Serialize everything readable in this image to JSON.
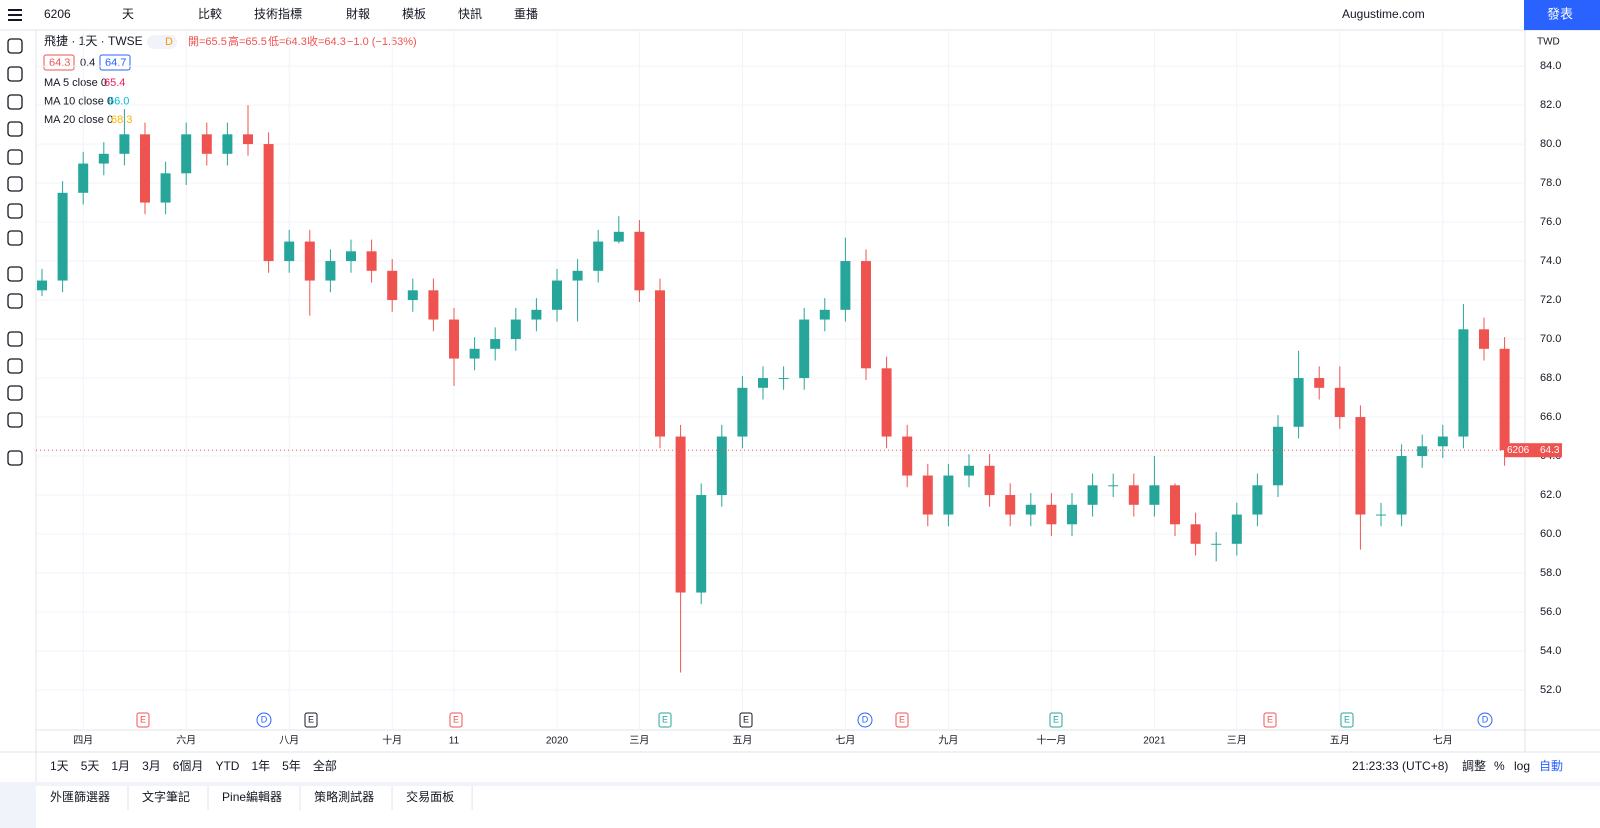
{
  "toolbar": {
    "symbol": "6206",
    "interval": "天",
    "compare": "比較",
    "indicators": "技術指標",
    "financials": "財報",
    "templates": "模板",
    "alerts": "快訊",
    "replay": "重播",
    "account": "Augustime.com",
    "publish": "發表"
  },
  "legend": {
    "title": "飛捷 · 1天 · TWSE",
    "badge": "D",
    "open": "開=65.5",
    "high": "高=65.5",
    "low": "低=64.3",
    "close": "收=64.3",
    "change": "−1.0 (−1.53%)",
    "bid": "64.3",
    "spread": "0.4",
    "ask": "64.7",
    "ma": [
      {
        "name": "MA 5 close 0",
        "value": "65.4",
        "color": "#e91e63"
      },
      {
        "name": "MA 10 close 0",
        "value": "66.0",
        "color": "#00bcd4"
      },
      {
        "name": "MA 20 close 0",
        "value": "68.3",
        "color": "#ffb300"
      }
    ]
  },
  "price_axis": {
    "currency": "TWD",
    "last_symbol": "6206",
    "last_price": "64.3"
  },
  "events": [
    "E",
    "D",
    "E",
    "E",
    "E",
    "E",
    "D",
    "E",
    "E",
    "E",
    "E",
    "D"
  ],
  "chart_data": {
    "type": "candlestick",
    "up_color": "#26a69a",
    "down_color": "#ef5350",
    "ylim": [
      49.95,
      85.85
    ],
    "yticks": [
      {
        "value": 52,
        "label": "52.0"
      },
      {
        "value": 54,
        "label": "54.0"
      },
      {
        "value": 56,
        "label": "56.0"
      },
      {
        "value": 58,
        "label": "58.0"
      },
      {
        "value": 60,
        "label": "60.0"
      },
      {
        "value": 62,
        "label": "62.0"
      },
      {
        "value": 64,
        "label": "64.0"
      },
      {
        "value": 66,
        "label": "66.0"
      },
      {
        "value": 68,
        "label": "68.0"
      },
      {
        "value": 70,
        "label": "70.0"
      },
      {
        "value": 72,
        "label": "72.0"
      },
      {
        "value": 74,
        "label": "74.0"
      },
      {
        "value": 76,
        "label": "76.0"
      },
      {
        "value": 78,
        "label": "78.0"
      },
      {
        "value": 80,
        "label": "80.0"
      },
      {
        "value": 82,
        "label": "82.0"
      },
      {
        "value": 84,
        "label": "84.0"
      }
    ],
    "grid": true,
    "categories": [
      null,
      null,
      "四月",
      null,
      null,
      null,
      null,
      "六月",
      null,
      null,
      null,
      null,
      "八月",
      null,
      null,
      null,
      null,
      "十月",
      null,
      null,
      "11",
      null,
      null,
      null,
      null,
      "2020",
      null,
      null,
      null,
      "三月",
      null,
      null,
      null,
      null,
      "五月",
      null,
      null,
      null,
      null,
      "七月",
      null,
      null,
      null,
      null,
      "九月",
      null,
      null,
      null,
      null,
      "十一月",
      null,
      null,
      null,
      null,
      "2021",
      null,
      null,
      null,
      "三月",
      null,
      null,
      null,
      null,
      "五月",
      null,
      null,
      null,
      null,
      "七月",
      null,
      null,
      null
    ],
    "open": [
      72.5,
      73,
      77.5,
      79,
      79.5,
      80.5,
      77,
      78.5,
      80.5,
      79.5,
      80.5,
      80,
      74,
      75,
      73,
      74,
      74.5,
      73.5,
      72,
      72.5,
      71,
      69,
      69.5,
      70,
      71,
      71.5,
      73,
      73.5,
      75,
      75.5,
      72.5,
      65,
      57,
      62,
      65,
      67.5,
      68,
      68,
      71,
      71.5,
      74,
      68.5,
      65,
      63,
      61,
      63,
      63.5,
      62,
      61,
      61.5,
      60.5,
      61.5,
      62.5,
      62.5,
      61.5,
      62.5,
      60.5,
      59.5,
      59.5,
      61,
      62.5,
      65.5,
      68,
      67.5,
      66,
      61,
      61,
      64,
      64.5,
      65,
      70.5,
      69.5
    ],
    "high": [
      73.6,
      78.1,
      79.6,
      80.1,
      81.8,
      81.1,
      79.1,
      81.1,
      81.1,
      81.1,
      82,
      80.6,
      75.6,
      75.6,
      74.6,
      75.1,
      75.1,
      74.1,
      73.1,
      73.1,
      71.6,
      70.1,
      70.6,
      71.6,
      72.1,
      73.6,
      74.1,
      75.6,
      76.3,
      76.1,
      73.1,
      65.6,
      62.6,
      65.6,
      68.1,
      68.6,
      68.6,
      71.6,
      72.1,
      75.2,
      74.6,
      69.1,
      65.6,
      63.6,
      63.6,
      64.1,
      64.1,
      62.6,
      62.1,
      62.1,
      62.1,
      63.1,
      63.1,
      63.1,
      64,
      62.6,
      61.1,
      60.1,
      61.6,
      63.1,
      66.1,
      69.4,
      68.6,
      68.6,
      66.6,
      61.6,
      64.6,
      65.1,
      65.6,
      71.8,
      71.1,
      70.1
    ],
    "low": [
      72.2,
      72.4,
      76.9,
      78.4,
      78.9,
      76.4,
      76.4,
      77.9,
      78.9,
      78.9,
      79.4,
      73.4,
      73.4,
      71.2,
      72.4,
      73.4,
      72.9,
      71.4,
      71.4,
      70.4,
      67.6,
      68.4,
      68.9,
      69.4,
      70.4,
      70.9,
      70.9,
      72.9,
      74.9,
      71.9,
      64.4,
      52.9,
      56.4,
      61.4,
      64.4,
      66.9,
      67.4,
      67.4,
      70.4,
      70.9,
      67.9,
      64.4,
      62.4,
      60.4,
      60.4,
      62.4,
      61.4,
      60.4,
      60.4,
      59.9,
      59.9,
      60.9,
      61.9,
      60.9,
      60.9,
      59.9,
      58.9,
      58.6,
      58.9,
      60.4,
      61.9,
      64.9,
      66.9,
      65.4,
      59.2,
      60.4,
      60.4,
      63.4,
      63.9,
      64.4,
      68.9,
      63.5
    ],
    "close": [
      73,
      77.5,
      79,
      79.5,
      80.5,
      77,
      78.5,
      80.5,
      79.5,
      80.5,
      80,
      74,
      75,
      73,
      74,
      74.5,
      73.5,
      72,
      72.5,
      71,
      69,
      69.5,
      70,
      71,
      71.5,
      73,
      73.5,
      75,
      75.5,
      72.5,
      65,
      57,
      62,
      65,
      67.5,
      68,
      68,
      71,
      71.5,
      74,
      68.5,
      65,
      63,
      61,
      63,
      63.5,
      62,
      61,
      61.5,
      60.5,
      61.5,
      62.5,
      62.5,
      61.5,
      62.5,
      60.5,
      59.5,
      59.5,
      61,
      62.5,
      65.5,
      68,
      67.5,
      66,
      61,
      61,
      64,
      64.5,
      65,
      70.5,
      69.5,
      64.3
    ]
  },
  "ranges": [
    "1天",
    "5天",
    "1月",
    "3月",
    "6個月",
    "YTD",
    "1年",
    "5年",
    "全部"
  ],
  "status": {
    "time": "21:23:33 (UTC+8)",
    "adjust": "調整",
    "percent": "%",
    "log": "log",
    "auto": "自動"
  },
  "tabs": [
    "外匯篩選器",
    "文字筆記",
    "Pine編輯器",
    "策略測試器",
    "交易面板"
  ]
}
